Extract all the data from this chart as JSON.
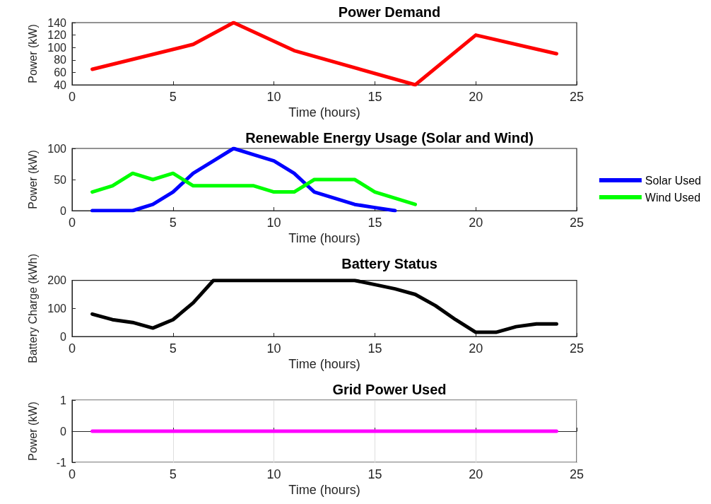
{
  "chart_data": [
    {
      "type": "line",
      "title": "Power Demand",
      "xlabel": "Time (hours)",
      "ylabel": "Power (kW)",
      "xlim": [
        0,
        25
      ],
      "xticks": [
        0,
        5,
        10,
        15,
        20,
        25
      ],
      "ylim": [
        40,
        140
      ],
      "yticks": [
        40,
        60,
        80,
        100,
        120,
        140
      ],
      "grid": false,
      "x": [
        1,
        6,
        8,
        11,
        17,
        20,
        24
      ],
      "series": [
        {
          "color": "#ff0000",
          "values": [
            65,
            105,
            140,
            95,
            40,
            120,
            90
          ]
        }
      ]
    },
    {
      "type": "line",
      "title": "Renewable Energy Usage (Solar and Wind)",
      "xlabel": "Time (hours)",
      "ylabel": "Power (kW)",
      "xlim": [
        0,
        25
      ],
      "xticks": [
        0,
        5,
        10,
        15,
        20,
        25
      ],
      "ylim": [
        0,
        100
      ],
      "yticks": [
        0,
        50,
        100
      ],
      "grid": false,
      "legend": "right",
      "x": [
        1,
        2,
        3,
        4,
        5,
        6,
        7,
        8,
        9,
        10,
        11,
        12,
        13,
        14,
        15,
        16,
        17
      ],
      "series": [
        {
          "name": "Solar Used",
          "color": "#0000ff",
          "values": [
            0,
            0,
            0,
            10,
            30,
            60,
            80,
            100,
            90,
            80,
            60,
            30,
            20,
            10,
            5,
            0,
            null
          ]
        },
        {
          "name": "Wind Used",
          "color": "#00ff00",
          "values": [
            30,
            40,
            60,
            50,
            60,
            40,
            40,
            40,
            40,
            30,
            30,
            50,
            50,
            50,
            30,
            20,
            10
          ]
        }
      ]
    },
    {
      "type": "line",
      "title": "Battery Status",
      "xlabel": "Time (hours)",
      "ylabel": "Battery Charge (kWh)",
      "xlim": [
        0,
        25
      ],
      "xticks": [
        0,
        5,
        10,
        15,
        20,
        25
      ],
      "ylim": [
        0,
        200
      ],
      "yticks": [
        0,
        100,
        200
      ],
      "grid": false,
      "x": [
        1,
        2,
        3,
        4,
        5,
        6,
        7,
        8,
        9,
        10,
        11,
        12,
        13,
        14,
        15,
        16,
        17,
        18,
        19,
        20,
        21,
        22,
        23,
        24
      ],
      "series": [
        {
          "color": "#000000",
          "values": [
            80,
            60,
            50,
            30,
            60,
            120,
            200,
            200,
            200,
            200,
            200,
            200,
            200,
            200,
            185,
            170,
            150,
            110,
            60,
            15,
            15,
            35,
            45,
            45
          ]
        }
      ]
    },
    {
      "type": "line",
      "title": "Grid Power Used",
      "xlabel": "Time (hours)",
      "ylabel": "Power (kW)",
      "xlim": [
        0,
        25
      ],
      "xticks": [
        0,
        5,
        10,
        15,
        20,
        25
      ],
      "ylim": [
        -1,
        1
      ],
      "yticks": [
        -1,
        0,
        1
      ],
      "grid": true,
      "x": [
        1,
        24
      ],
      "series": [
        {
          "color": "#ff00ff",
          "values": [
            0,
            0
          ]
        }
      ]
    }
  ]
}
